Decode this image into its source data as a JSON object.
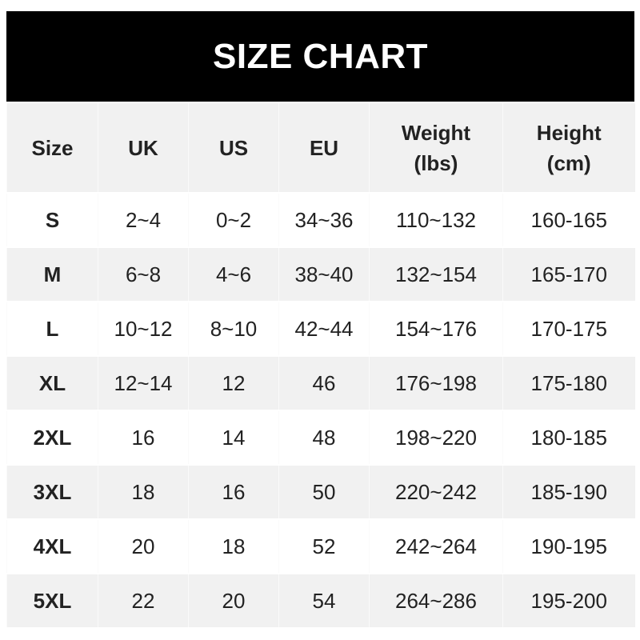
{
  "title": "SIZE CHART",
  "headers": [
    "Size",
    "UK",
    "US",
    "EU",
    "Weight\n(lbs)",
    "Height\n(cm)"
  ],
  "header_lines": [
    [
      "Size"
    ],
    [
      "UK"
    ],
    [
      "US"
    ],
    [
      "EU"
    ],
    [
      "Weight",
      "(lbs)"
    ],
    [
      "Height",
      "(cm)"
    ]
  ],
  "rows": [
    [
      "S",
      "2~4",
      "0~2",
      "34~36",
      "110~132",
      "160-165"
    ],
    [
      "M",
      "6~8",
      "4~6",
      "38~40",
      "132~154",
      "165-170"
    ],
    [
      "L",
      "10~12",
      "8~10",
      "42~44",
      "154~176",
      "170-175"
    ],
    [
      "XL",
      "12~14",
      "12",
      "46",
      "176~198",
      "175-180"
    ],
    [
      "2XL",
      "16",
      "14",
      "48",
      "198~220",
      "180-185"
    ],
    [
      "3XL",
      "18",
      "16",
      "50",
      "220~242",
      "185-190"
    ],
    [
      "4XL",
      "20",
      "18",
      "52",
      "242~264",
      "190-195"
    ],
    [
      "5XL",
      "22",
      "20",
      "54",
      "264~286",
      "195-200"
    ]
  ]
}
